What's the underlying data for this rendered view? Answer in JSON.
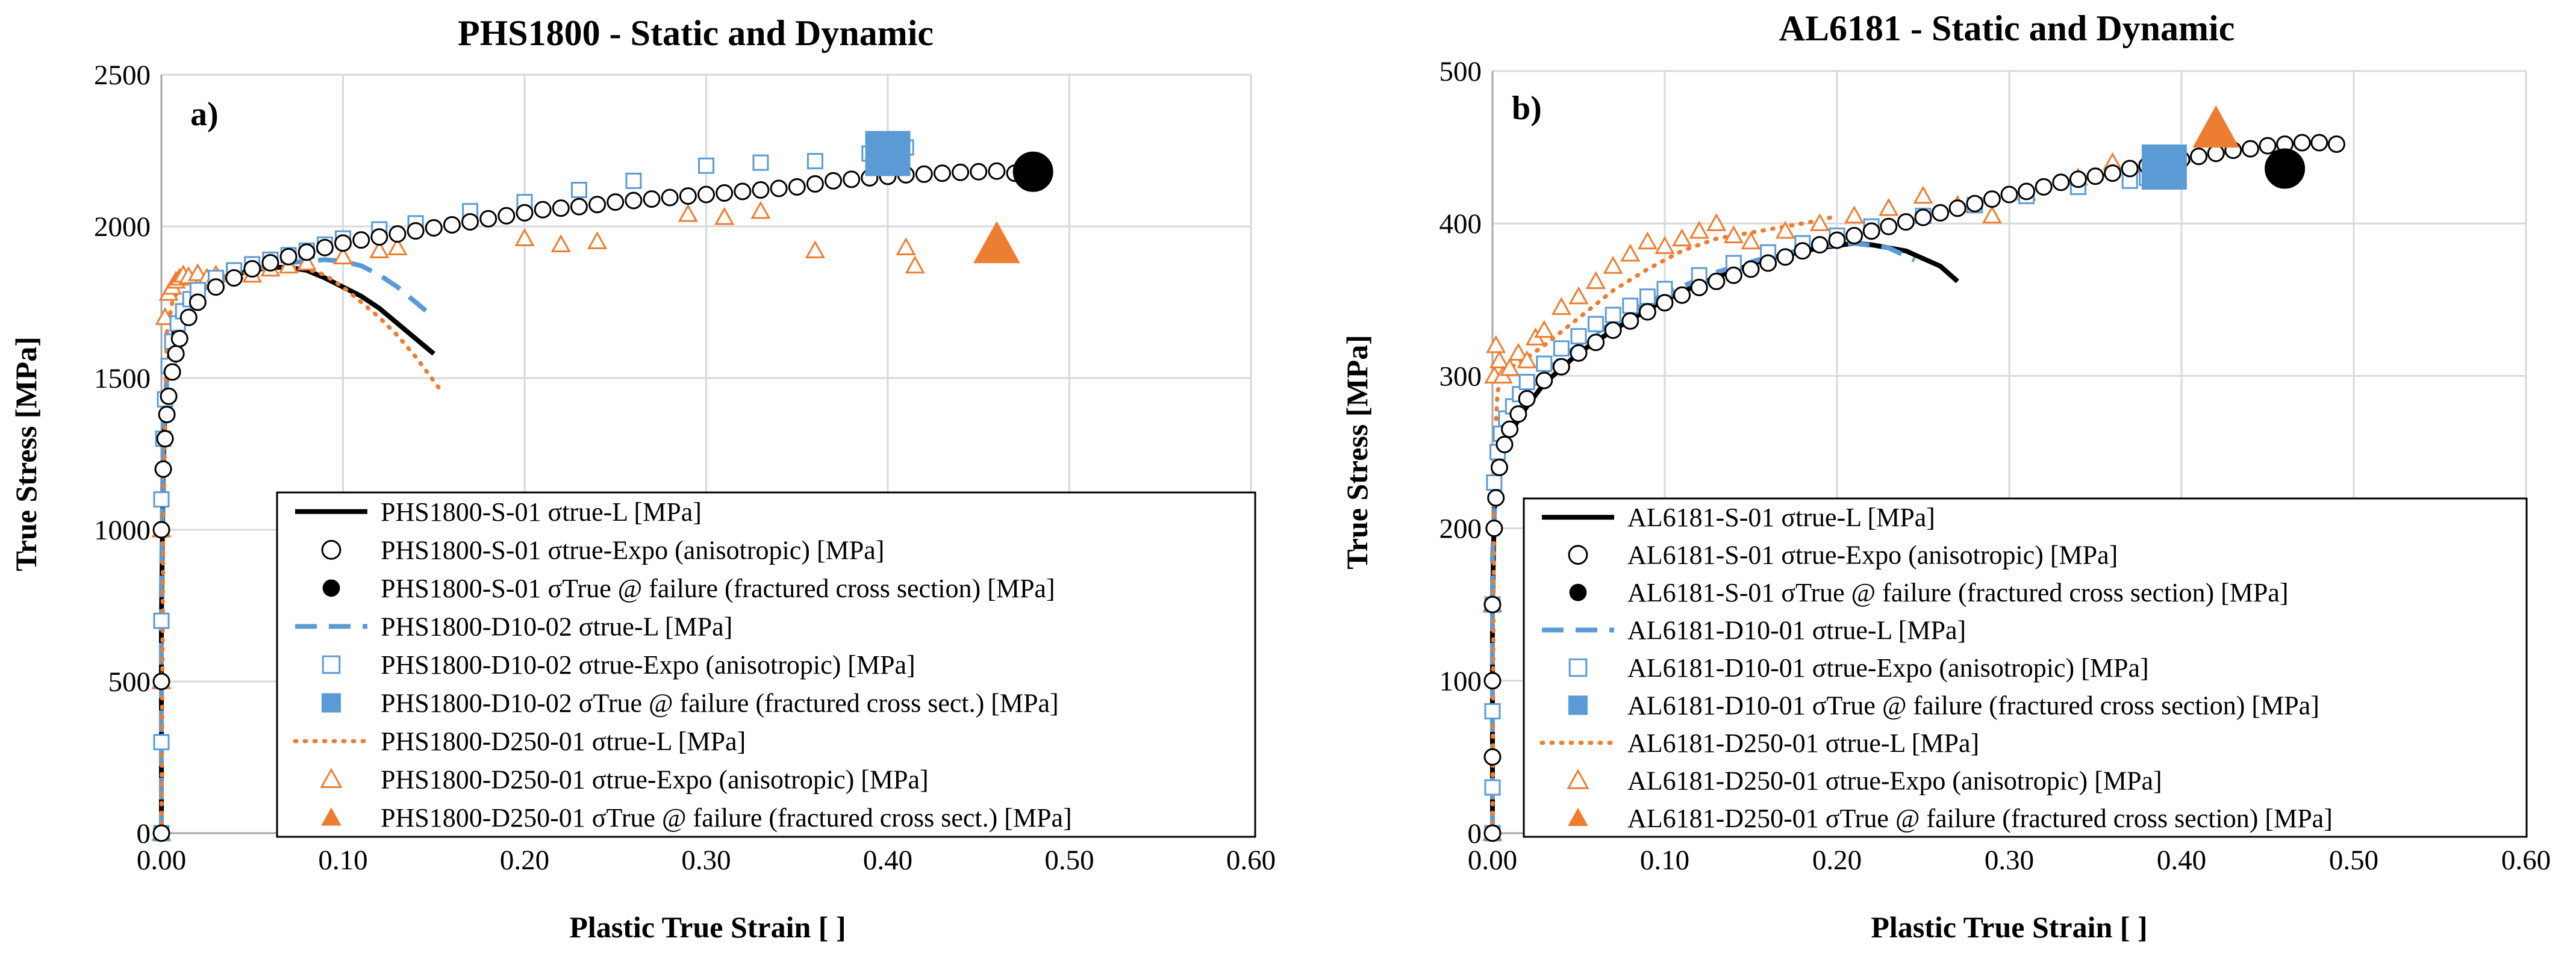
{
  "colors": {
    "black": "#000000",
    "blue": "#5b9bd5",
    "orange": "#ed7d31"
  },
  "chart_data": [
    {
      "type": "scatter",
      "title": "PHS1800 - Static and Dynamic",
      "panel_label": "a)",
      "xlabel": "Plastic True Strain [  ]",
      "ylabel": "True Stress [MPa]",
      "xlim": [
        0,
        0.6
      ],
      "ylim": [
        0,
        2500
      ],
      "xticks": [
        0,
        0.1,
        0.2,
        0.3,
        0.4,
        0.5,
        0.6
      ],
      "yticks": [
        0,
        500,
        1000,
        1500,
        2000,
        2500
      ],
      "xtick_labels": [
        "0.00",
        "0.10",
        "0.20",
        "0.30",
        "0.40",
        "0.50",
        "0.60"
      ],
      "ytick_labels": [
        "0",
        "500",
        "1000",
        "1500",
        "2000",
        "2500"
      ],
      "series": [
        {
          "name": "PHS1800-S-01 σtrue-L [MPa]",
          "style": "line",
          "color": "black",
          "x": [
            0,
            0,
            0.001,
            0.002,
            0.003,
            0.005,
            0.008,
            0.012,
            0.02,
            0.03,
            0.04,
            0.05,
            0.06,
            0.07,
            0.08,
            0.09,
            0.1,
            0.11,
            0.12,
            0.13,
            0.14,
            0.15
          ],
          "y": [
            0,
            700,
            1200,
            1400,
            1500,
            1600,
            1680,
            1740,
            1790,
            1820,
            1840,
            1855,
            1865,
            1865,
            1855,
            1830,
            1800,
            1770,
            1730,
            1680,
            1630,
            1580
          ]
        },
        {
          "name": "PHS1800-S-01 σtrue-Expo (anisotropic) [MPa]",
          "style": "open-circle",
          "color": "black",
          "x": [
            0,
            0,
            0,
            0.001,
            0.002,
            0.003,
            0.004,
            0.006,
            0.008,
            0.01,
            0.015,
            0.02,
            0.03,
            0.04,
            0.05,
            0.06,
            0.07,
            0.08,
            0.09,
            0.1,
            0.11,
            0.12,
            0.13,
            0.14,
            0.15,
            0.16,
            0.17,
            0.18,
            0.19,
            0.2,
            0.21,
            0.22,
            0.23,
            0.24,
            0.25,
            0.26,
            0.27,
            0.28,
            0.29,
            0.3,
            0.31,
            0.32,
            0.33,
            0.34,
            0.35,
            0.36,
            0.37,
            0.38,
            0.39,
            0.4,
            0.41,
            0.42,
            0.43,
            0.44,
            0.45,
            0.46,
            0.47
          ],
          "y": [
            0,
            500,
            1000,
            1200,
            1300,
            1380,
            1440,
            1520,
            1580,
            1630,
            1700,
            1750,
            1800,
            1830,
            1860,
            1880,
            1900,
            1915,
            1930,
            1945,
            1955,
            1965,
            1975,
            1985,
            1995,
            2005,
            2015,
            2025,
            2035,
            2045,
            2055,
            2060,
            2065,
            2072,
            2080,
            2085,
            2090,
            2095,
            2100,
            2105,
            2110,
            2115,
            2120,
            2125,
            2130,
            2140,
            2150,
            2155,
            2160,
            2165,
            2170,
            2172,
            2175,
            2178,
            2180,
            2182,
            2175
          ]
        },
        {
          "name": "PHS1800-S-01 σTrue @ failure (fractured cross section) [MPa]",
          "style": "filled-circle",
          "color": "black",
          "x": [
            0.48
          ],
          "y": [
            2180
          ]
        },
        {
          "name": "PHS1800-D10-02 σtrue-L [MPa]",
          "style": "dashed",
          "color": "blue",
          "x": [
            0,
            0,
            0.001,
            0.003,
            0.006,
            0.01,
            0.02,
            0.03,
            0.05,
            0.07,
            0.09,
            0.1,
            0.11,
            0.12,
            0.13,
            0.14,
            0.15
          ],
          "y": [
            0,
            800,
            1300,
            1500,
            1620,
            1700,
            1780,
            1820,
            1860,
            1880,
            1890,
            1885,
            1870,
            1840,
            1800,
            1750,
            1700
          ]
        },
        {
          "name": "PHS1800-D10-02 σtrue-Expo (anisotropic) [MPa]",
          "style": "open-square",
          "color": "blue",
          "x": [
            0,
            0,
            0,
            0,
            0.001,
            0.002,
            0.004,
            0.006,
            0.009,
            0.012,
            0.016,
            0.02,
            0.03,
            0.04,
            0.05,
            0.06,
            0.07,
            0.08,
            0.09,
            0.1,
            0.12,
            0.14,
            0.17,
            0.2,
            0.23,
            0.26,
            0.3,
            0.33,
            0.36,
            0.39,
            0.41
          ],
          "y": [
            0,
            300,
            700,
            1100,
            1300,
            1430,
            1540,
            1620,
            1680,
            1720,
            1760,
            1790,
            1830,
            1855,
            1875,
            1890,
            1905,
            1920,
            1940,
            1960,
            1990,
            2010,
            2050,
            2080,
            2120,
            2150,
            2200,
            2210,
            2215,
            2240,
            2260
          ]
        },
        {
          "name": "PHS1800-D10-02 σTrue @ failure (fractured cross sect.)  [MPa]",
          "style": "filled-square",
          "color": "blue",
          "x": [
            0.4
          ],
          "y": [
            2240
          ]
        },
        {
          "name": "PHS1800-D250-01 σtrue-L [MPa]",
          "style": "dotted",
          "color": "orange",
          "x": [
            0,
            0.001,
            0.003,
            0.006,
            0.01,
            0.015,
            0.02,
            0.03,
            0.04,
            0.05,
            0.06,
            0.07,
            0.08,
            0.09,
            0.1,
            0.11,
            0.12,
            0.13,
            0.14,
            0.15,
            0.155
          ],
          "y": [
            0,
            1000,
            1650,
            1750,
            1800,
            1820,
            1830,
            1835,
            1840,
            1850,
            1860,
            1865,
            1860,
            1840,
            1800,
            1750,
            1700,
            1640,
            1570,
            1490,
            1450
          ]
        },
        {
          "name": "PHS1800-D250-01 σtrue-Expo (anisotropic) [MPa]",
          "style": "open-triangle",
          "color": "orange",
          "x": [
            0,
            0,
            0,
            0.002,
            0.004,
            0.006,
            0.008,
            0.01,
            0.012,
            0.015,
            0.02,
            0.025,
            0.03,
            0.04,
            0.05,
            0.06,
            0.07,
            0.08,
            0.1,
            0.12,
            0.13,
            0.2,
            0.22,
            0.24,
            0.29,
            0.31,
            0.33,
            0.36,
            0.41,
            0.415
          ],
          "y": [
            0,
            500,
            1000,
            1700,
            1780,
            1800,
            1820,
            1830,
            1840,
            1835,
            1845,
            1830,
            1840,
            1850,
            1840,
            1860,
            1870,
            1880,
            1900,
            1920,
            1930,
            1960,
            1940,
            1950,
            2040,
            2030,
            2050,
            1920,
            1930,
            1870
          ]
        },
        {
          "name": "PHS1800-D250-01 σTrue @ failure (fractured cross sect.)  [MPa]",
          "style": "filled-triangle",
          "color": "orange",
          "x": [
            0.46
          ],
          "y": [
            1940
          ]
        }
      ]
    },
    {
      "type": "scatter",
      "title": "AL6181 - Static and Dynamic",
      "panel_label": "b)",
      "xlabel": "Plastic True Strain [  ]",
      "ylabel": "True Stress [MPa]",
      "xlim": [
        0,
        0.6
      ],
      "ylim": [
        0,
        500
      ],
      "xticks": [
        0,
        0.1,
        0.2,
        0.3,
        0.4,
        0.5,
        0.6
      ],
      "yticks": [
        0,
        100,
        200,
        300,
        400,
        500
      ],
      "xtick_labels": [
        "0.00",
        "0.10",
        "0.20",
        "0.30",
        "0.40",
        "0.50",
        "0.60"
      ],
      "ytick_labels": [
        "0",
        "100",
        "200",
        "300",
        "400",
        "500"
      ],
      "series": [
        {
          "name": "AL6181-S-01 σtrue-L [MPa]",
          "style": "line",
          "color": "black",
          "x": [
            0,
            0,
            0.001,
            0.002,
            0.004,
            0.007,
            0.01,
            0.02,
            0.03,
            0.05,
            0.07,
            0.1,
            0.13,
            0.16,
            0.19,
            0.21,
            0.22,
            0.24,
            0.26,
            0.27
          ],
          "y": [
            0,
            150,
            210,
            230,
            245,
            255,
            262,
            280,
            295,
            315,
            330,
            350,
            365,
            377,
            384,
            387,
            386,
            382,
            372,
            362
          ]
        },
        {
          "name": "AL6181-S-01 σtrue-Expo (anisotropic) [MPa]",
          "style": "open-circle",
          "color": "black",
          "x": [
            0,
            0,
            0,
            0,
            0.001,
            0.002,
            0.004,
            0.007,
            0.01,
            0.015,
            0.02,
            0.03,
            0.04,
            0.05,
            0.06,
            0.07,
            0.08,
            0.09,
            0.1,
            0.11,
            0.12,
            0.13,
            0.14,
            0.15,
            0.16,
            0.17,
            0.18,
            0.19,
            0.2,
            0.21,
            0.22,
            0.23,
            0.24,
            0.25,
            0.26,
            0.27,
            0.28,
            0.29,
            0.3,
            0.31,
            0.32,
            0.33,
            0.34,
            0.35,
            0.36,
            0.37,
            0.38,
            0.39,
            0.4,
            0.41,
            0.42,
            0.43,
            0.44,
            0.45,
            0.46,
            0.47,
            0.48,
            0.49
          ],
          "y": [
            0,
            50,
            100,
            150,
            200,
            220,
            240,
            255,
            265,
            275,
            285,
            297,
            306,
            315,
            322,
            330,
            336,
            342,
            348,
            353,
            358,
            362,
            366,
            370,
            374,
            378,
            382,
            386,
            389,
            392,
            395,
            398,
            401,
            404,
            407,
            410,
            413,
            416,
            419,
            421,
            424,
            427,
            429,
            431,
            433,
            436,
            438,
            440,
            442,
            444,
            446,
            448,
            449,
            451,
            452,
            453,
            453,
            452
          ]
        },
        {
          "name": "AL6181-S-01 σTrue @ failure (fractured cross section) [MPa]",
          "style": "filled-circle",
          "color": "black",
          "x": [
            0.46
          ],
          "y": [
            436
          ]
        },
        {
          "name": "AL6181-D10-01 σtrue-L [MPa]",
          "style": "dashed",
          "color": "blue",
          "x": [
            0,
            0,
            0.002,
            0.005,
            0.01,
            0.02,
            0.04,
            0.06,
            0.08,
            0.1,
            0.13,
            0.16,
            0.19,
            0.21,
            0.23,
            0.245
          ],
          "y": [
            0,
            180,
            235,
            255,
            270,
            290,
            312,
            328,
            342,
            354,
            368,
            378,
            385,
            387,
            384,
            376
          ]
        },
        {
          "name": "AL6181-D10-01 σtrue-Expo (anisotropic) [MPa]",
          "style": "open-square",
          "color": "blue",
          "x": [
            0,
            0,
            0,
            0,
            0.001,
            0.003,
            0.005,
            0.008,
            0.012,
            0.016,
            0.02,
            0.03,
            0.04,
            0.05,
            0.06,
            0.07,
            0.08,
            0.09,
            0.1,
            0.12,
            0.14,
            0.16,
            0.18,
            0.2,
            0.22,
            0.25,
            0.28,
            0.31,
            0.34,
            0.37,
            0.38
          ],
          "y": [
            0,
            30,
            80,
            150,
            230,
            250,
            262,
            272,
            280,
            288,
            296,
            308,
            318,
            326,
            334,
            340,
            346,
            352,
            357,
            366,
            374,
            381,
            387,
            392,
            398,
            405,
            412,
            418,
            424,
            428,
            430
          ]
        },
        {
          "name": "AL6181-D10-01 σTrue @ failure (fractured cross section) [MPa]",
          "style": "filled-square",
          "color": "blue",
          "x": [
            0.39
          ],
          "y": [
            437
          ]
        },
        {
          "name": "AL6181-D250-01 σtrue-L [MPa]",
          "style": "dotted",
          "color": "orange",
          "x": [
            0,
            0.001,
            0.003,
            0.006,
            0.01,
            0.02,
            0.03,
            0.05,
            0.07,
            0.09,
            0.11,
            0.13,
            0.15,
            0.17,
            0.19,
            0.2
          ],
          "y": [
            0,
            250,
            290,
            300,
            305,
            312,
            320,
            338,
            356,
            370,
            382,
            390,
            394,
            398,
            402,
            405
          ]
        },
        {
          "name": "AL6181-D250-01 σtrue-Expo (anisotropic) [MPa]",
          "style": "open-triangle",
          "color": "orange",
          "x": [
            0,
            0,
            0.001,
            0.002,
            0.004,
            0.006,
            0.01,
            0.015,
            0.02,
            0.025,
            0.03,
            0.04,
            0.05,
            0.06,
            0.07,
            0.08,
            0.09,
            0.1,
            0.11,
            0.12,
            0.13,
            0.14,
            0.15,
            0.17,
            0.19,
            0.21,
            0.23,
            0.25,
            0.27,
            0.29,
            0.31,
            0.34,
            0.36,
            0.38,
            0.4,
            0.42
          ],
          "y": [
            0,
            150,
            300,
            320,
            310,
            300,
            305,
            315,
            310,
            325,
            330,
            345,
            352,
            362,
            372,
            380,
            388,
            385,
            390,
            395,
            400,
            392,
            388,
            395,
            400,
            405,
            410,
            418,
            412,
            405,
            420,
            430,
            440,
            438,
            445,
            450
          ]
        },
        {
          "name": "AL6181-D250-01 σTrue @ failure (fractured cross section) [MPa]",
          "style": "filled-triangle",
          "color": "orange",
          "x": [
            0.42
          ],
          "y": [
            462
          ]
        }
      ]
    }
  ]
}
